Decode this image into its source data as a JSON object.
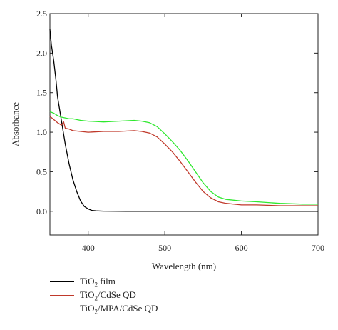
{
  "chart_data": {
    "type": "line",
    "xlabel": "Wavelength (nm)",
    "ylabel": "Absorbance",
    "xlim": [
      350,
      700
    ],
    "ylim": [
      -0.3,
      2.5
    ],
    "xticks": [
      400,
      500,
      600,
      700
    ],
    "xtick_labels": [
      "400",
      "500",
      "600",
      "700"
    ],
    "yticks": [
      0.0,
      0.5,
      1.0,
      1.5,
      2.0,
      2.5
    ],
    "ytick_labels": [
      "0.0",
      "0.5",
      "1.0",
      "1.5",
      "2.0",
      "2.5"
    ],
    "grid": false,
    "legend_position": "below",
    "series": [
      {
        "name": "TiO2 film",
        "label_main": "TiO",
        "label_sub": "2",
        "label_rest": " film",
        "color": "#000000",
        "x": [
          350,
          352,
          355,
          358,
          360,
          365,
          370,
          375,
          380,
          385,
          390,
          395,
          400,
          405,
          410,
          420,
          450,
          500,
          550,
          600,
          650,
          700
        ],
        "y": [
          2.3,
          2.1,
          1.9,
          1.65,
          1.45,
          1.15,
          0.85,
          0.6,
          0.4,
          0.25,
          0.13,
          0.06,
          0.03,
          0.01,
          0.005,
          0.002,
          0.0,
          0.0,
          0.0,
          0.0,
          0.0,
          0.0
        ]
      },
      {
        "name": "TiO2/CdSe QD",
        "label_main": "TiO",
        "label_sub": "2",
        "label_rest": "/CdSe QD",
        "color": "#c0392b",
        "x": [
          350,
          355,
          360,
          365,
          368,
          370,
          375,
          380,
          390,
          400,
          420,
          440,
          460,
          470,
          480,
          490,
          500,
          510,
          520,
          530,
          540,
          550,
          560,
          570,
          580,
          600,
          620,
          650,
          680,
          700
        ],
        "y": [
          1.2,
          1.16,
          1.12,
          1.09,
          1.13,
          1.05,
          1.04,
          1.02,
          1.01,
          1.0,
          1.01,
          1.01,
          1.02,
          1.01,
          0.99,
          0.94,
          0.85,
          0.75,
          0.63,
          0.5,
          0.37,
          0.25,
          0.17,
          0.12,
          0.1,
          0.08,
          0.08,
          0.07,
          0.07,
          0.07
        ]
      },
      {
        "name": "TiO2/MPA/CdSe QD",
        "label_main": "TiO",
        "label_sub": "2",
        "label_rest": "/MPA/CdSe QD",
        "color": "#2ee82e",
        "x": [
          350,
          355,
          360,
          365,
          370,
          375,
          380,
          390,
          400,
          420,
          440,
          460,
          470,
          480,
          490,
          500,
          510,
          520,
          530,
          540,
          550,
          560,
          570,
          580,
          600,
          620,
          650,
          680,
          700
        ],
        "y": [
          1.26,
          1.24,
          1.21,
          1.19,
          1.18,
          1.17,
          1.17,
          1.15,
          1.14,
          1.13,
          1.14,
          1.15,
          1.14,
          1.12,
          1.07,
          0.98,
          0.88,
          0.77,
          0.64,
          0.5,
          0.36,
          0.25,
          0.18,
          0.15,
          0.13,
          0.12,
          0.1,
          0.09,
          0.09
        ]
      }
    ]
  }
}
